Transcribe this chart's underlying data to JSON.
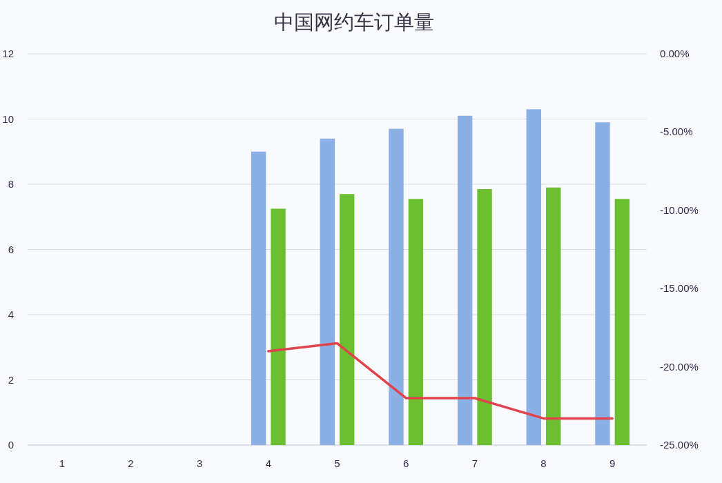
{
  "chart_data": {
    "type": "bar",
    "title": "中国网约车订单量",
    "categories": [
      "1",
      "2",
      "3",
      "4",
      "5",
      "6",
      "7",
      "8",
      "9"
    ],
    "series": [
      {
        "color": "#8cb0e5",
        "values": [
          null,
          null,
          null,
          9.0,
          9.4,
          9.7,
          10.1,
          10.3,
          9.9
        ]
      },
      {
        "color": "#6cbf30",
        "values": [
          null,
          null,
          null,
          7.25,
          7.7,
          7.55,
          7.85,
          7.9,
          7.55
        ]
      },
      {
        "type": "line",
        "axis": "y2",
        "color": "#e0434c",
        "values": [
          null,
          null,
          null,
          -19.0,
          -18.5,
          -22.0,
          -22.0,
          -23.3,
          -23.3
        ]
      }
    ],
    "ylim": [
      0,
      12
    ],
    "yticks": [
      0,
      2,
      4,
      6,
      8,
      10,
      12
    ],
    "y2lim": [
      -25,
      0
    ],
    "y2ticks": [
      {
        "value": -25,
        "label": "-25.00%"
      },
      {
        "value": -20,
        "label": "-20.00%"
      },
      {
        "value": -15,
        "label": "-15.00%"
      },
      {
        "value": -10,
        "label": "-10.00%"
      },
      {
        "value": -5,
        "label": "-5.00%"
      },
      {
        "value": 0,
        "label": "0.00%"
      }
    ],
    "grid": "y"
  }
}
